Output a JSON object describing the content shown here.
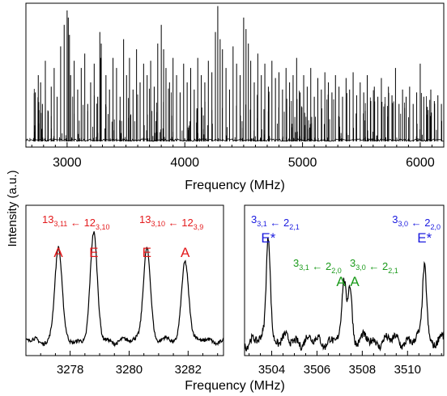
{
  "shared": {
    "ylabel": "Intensity (a.u.)",
    "xlabel": "Frequency (MHz)"
  },
  "chart_data": [
    {
      "type": "line",
      "title": "",
      "xlabel": "Frequency (MHz)",
      "ylabel": "Intensity (a.u.)",
      "xlim": [
        2650,
        6200
      ],
      "ylim": [
        0,
        1
      ],
      "grid": false,
      "xticks": [
        "3000",
        "4000",
        "5000",
        "6000"
      ],
      "xtick_values": [
        3000,
        4000,
        5000,
        6000
      ],
      "baseline": 0.04,
      "series": [
        {
          "lines_x": [
            2730,
            2755,
            2775,
            2790,
            2815,
            2840,
            2865,
            2890,
            2915,
            2945,
            2975,
            3000,
            3010,
            3020,
            3030,
            3060,
            3090,
            3120,
            3150,
            3175,
            3200,
            3230,
            3260,
            3278,
            3285,
            3290,
            3330,
            3360,
            3390,
            3420,
            3450,
            3480,
            3505,
            3530,
            3560,
            3590,
            3620,
            3650,
            3680,
            3710,
            3740,
            3770,
            3800,
            3820,
            3840,
            3870,
            3900,
            3930,
            3960,
            3990,
            4020,
            4050,
            4080,
            4110,
            4140,
            4170,
            4200,
            4230,
            4260,
            4280,
            4300,
            4320,
            4350,
            4380,
            4410,
            4440,
            4470,
            4500,
            4520,
            4540,
            4560,
            4590,
            4620,
            4650,
            4680,
            4710,
            4740,
            4770,
            4800,
            4830,
            4860,
            4890,
            4920,
            4950,
            4980,
            5010,
            5040,
            5070,
            5100,
            5130,
            5160,
            5190,
            5220,
            5250,
            5280,
            5310,
            5340,
            5370,
            5400,
            5430,
            5460,
            5490,
            5520,
            5550,
            5580,
            5610,
            5640,
            5670,
            5700,
            5730,
            5760,
            5790,
            5820,
            5850,
            5880,
            5910,
            5940,
            5970,
            6000,
            6030,
            6060,
            6090,
            6120,
            6150,
            6180
          ],
          "lines_y": [
            0.38,
            0.5,
            0.45,
            0.3,
            0.6,
            0.25,
            0.42,
            0.55,
            0.35,
            0.7,
            0.85,
            0.95,
            0.9,
            0.78,
            0.5,
            0.6,
            0.4,
            0.55,
            0.65,
            0.3,
            0.45,
            0.58,
            0.35,
            0.8,
            0.62,
            0.72,
            0.5,
            0.4,
            0.62,
            0.55,
            0.35,
            0.75,
            0.5,
            0.62,
            0.4,
            0.68,
            0.45,
            0.58,
            0.5,
            0.6,
            0.42,
            0.72,
            0.85,
            0.68,
            0.55,
            0.45,
            0.62,
            0.5,
            0.38,
            0.58,
            0.45,
            0.55,
            0.4,
            0.62,
            0.5,
            0.45,
            0.6,
            0.52,
            0.8,
            0.98,
            0.75,
            0.68,
            0.55,
            0.4,
            0.7,
            0.58,
            0.5,
            0.9,
            0.82,
            0.72,
            0.6,
            0.45,
            0.65,
            0.5,
            0.58,
            0.42,
            0.6,
            0.48,
            0.52,
            0.4,
            0.55,
            0.45,
            0.5,
            0.62,
            0.38,
            0.5,
            0.42,
            0.55,
            0.35,
            0.48,
            0.4,
            0.52,
            0.45,
            0.38,
            0.5,
            0.42,
            0.35,
            0.48,
            0.4,
            0.52,
            0.36,
            0.45,
            0.38,
            0.5,
            0.32,
            0.42,
            0.35,
            0.48,
            0.3,
            0.42,
            0.36,
            0.55,
            0.3,
            0.4,
            0.35,
            0.42,
            0.3,
            0.38,
            0.58,
            0.35,
            0.28,
            0.4,
            0.32,
            0.36,
            0.3
          ]
        }
      ]
    },
    {
      "type": "line",
      "title": "",
      "xlabel": "Frequency (MHz)",
      "ylabel": "Intensity (a.u.)",
      "xlim": [
        3276.5,
        3283.2
      ],
      "ylim": [
        0,
        1
      ],
      "grid": false,
      "xticks": [
        "3278",
        "3280",
        "3282"
      ],
      "xtick_values": [
        3278,
        3280,
        3282
      ],
      "baseline": 0.1,
      "peaks": [
        {
          "x": 3277.6,
          "y": 0.72,
          "label": "A"
        },
        {
          "x": 3278.8,
          "y": 0.8,
          "label": "E"
        },
        {
          "x": 3280.6,
          "y": 0.73,
          "label": "E"
        },
        {
          "x": 3281.9,
          "y": 0.64,
          "label": "A"
        }
      ],
      "transitions": [
        {
          "upper": "13",
          "upper_sub": "3,11",
          "lower": "12",
          "lower_sub": "3,10",
          "color": "#e31a1c"
        },
        {
          "upper": "13",
          "upper_sub": "3,10",
          "lower": "12",
          "lower_sub": "3,9",
          "color": "#e31a1c"
        }
      ]
    },
    {
      "type": "line",
      "title": "",
      "xlabel": "Frequency (MHz)",
      "ylabel": "Intensity (a.u.)",
      "xlim": [
        3502.8,
        3511.6
      ],
      "ylim": [
        0,
        1
      ],
      "grid": false,
      "xticks": [
        "3504",
        "3506",
        "3508",
        "3510"
      ],
      "xtick_values": [
        3504,
        3506,
        3508,
        3510
      ],
      "baseline": 0.1,
      "peaks": [
        {
          "x": 3503.85,
          "y": 0.82,
          "label": "E*",
          "color": "#1a1adf"
        },
        {
          "x": 3507.2,
          "y": 0.5,
          "label": "A",
          "color": "#1a9a1a"
        },
        {
          "x": 3507.45,
          "y": 0.47,
          "label": "A",
          "color": "#1a9a1a"
        },
        {
          "x": 3510.75,
          "y": 0.62,
          "label": "E*",
          "color": "#1a1adf"
        }
      ],
      "transitions": [
        {
          "upper": "3",
          "upper_sub": "3,1",
          "lower": "2",
          "lower_sub": "2,1",
          "color": "#1a1adf"
        },
        {
          "upper": "3",
          "upper_sub": "3,0",
          "lower": "2",
          "lower_sub": "2,0",
          "color": "#1a1adf"
        },
        {
          "upper": "3",
          "upper_sub": "3,1",
          "lower": "2",
          "lower_sub": "2,0",
          "color": "#1a9a1a"
        },
        {
          "upper": "3",
          "upper_sub": "3,0",
          "lower": "2",
          "lower_sub": "2,1",
          "color": "#1a9a1a"
        }
      ]
    }
  ]
}
